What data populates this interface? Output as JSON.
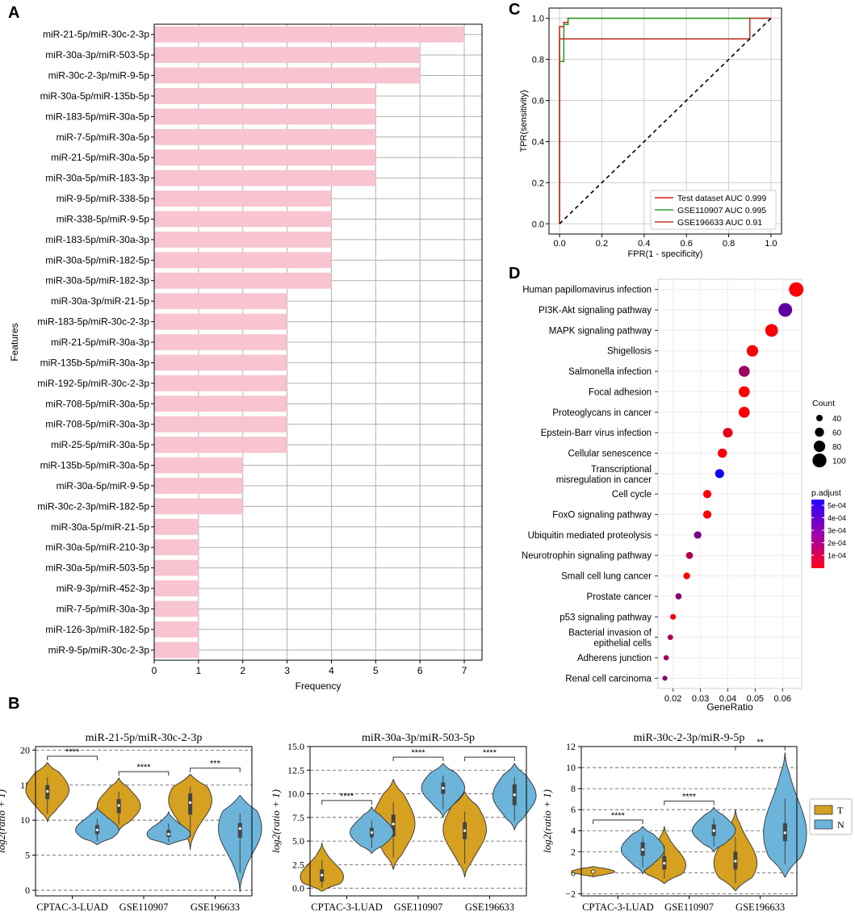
{
  "panel_letters": {
    "a": "A",
    "b": "B",
    "c": "C",
    "d": "D"
  },
  "colors": {
    "bar": "#f7c4cf",
    "violin_t": "#d6a021",
    "violin_n": "#6cb4da",
    "roc1": "#e41a1c",
    "roc2": "#2ca02c",
    "roc3": "#c0392b"
  },
  "chart_data": [
    {
      "id": "A",
      "type": "bar",
      "orientation": "horizontal",
      "title": "",
      "xlabel": "Frequency",
      "ylabel": "Features",
      "xlim": [
        0,
        7.4
      ],
      "xticks": [
        0,
        1,
        2,
        3,
        4,
        5,
        6,
        7
      ],
      "grid": true,
      "categories": [
        "miR-21-5p/miR-30c-2-3p",
        "miR-30a-3p/miR-503-5p",
        "miR-30c-2-3p/miR-9-5p",
        "miR-30a-5p/miR-135b-5p",
        "miR-183-5p/miR-30a-5p",
        "miR-7-5p/miR-30a-5p",
        "miR-21-5p/miR-30a-5p",
        "miR-30a-5p/miR-183-3p",
        "miR-9-5p/miR-338-5p",
        "miR-338-5p/miR-9-5p",
        "miR-183-5p/miR-30a-3p",
        "miR-30a-5p/miR-182-5p",
        "miR-30a-5p/miR-182-3p",
        "miR-30a-3p/miR-21-5p",
        "miR-183-5p/miR-30c-2-3p",
        "miR-21-5p/miR-30a-3p",
        "miR-135b-5p/miR-30a-3p",
        "miR-192-5p/miR-30c-2-3p",
        "miR-708-5p/miR-30a-5p",
        "miR-708-5p/miR-30a-3p",
        "miR-25-5p/miR-30a-5p",
        "miR-135b-5p/miR-30a-5p",
        "miR-30a-5p/miR-9-5p",
        "miR-30c-2-3p/miR-182-5p",
        "miR-30a-5p/miR-21-5p",
        "miR-30a-5p/miR-210-3p",
        "miR-30a-5p/miR-503-5p",
        "miR-9-3p/miR-452-3p",
        "miR-7-5p/miR-30a-3p",
        "miR-126-3p/miR-182-5p",
        "miR-9-5p/miR-30c-2-3p"
      ],
      "values": [
        7,
        6,
        6,
        5,
        5,
        5,
        5,
        5,
        4,
        4,
        4,
        4,
        4,
        3,
        3,
        3,
        3,
        3,
        3,
        3,
        3,
        2,
        2,
        2,
        1,
        1,
        1,
        1,
        1,
        1,
        1
      ]
    },
    {
      "id": "C",
      "type": "line",
      "xlabel": "FPR(1 - specificity)",
      "ylabel": "TPR(sensitivity)",
      "xlim": [
        -0.05,
        1.05
      ],
      "ylim": [
        -0.05,
        1.05
      ],
      "xticks": [
        "0.0",
        "0.2",
        "0.4",
        "0.6",
        "0.8",
        "1.0"
      ],
      "yticks": [
        "0.0",
        "0.2",
        "0.4",
        "0.6",
        "0.8",
        "1.0"
      ],
      "legend_position": "bottom-right",
      "series": [
        {
          "name": "Test dataset AUC 0.999",
          "color": "#e41a1c",
          "x": [
            0,
            0,
            0.02,
            0.02,
            0.04,
            0.04,
            1
          ],
          "y": [
            0,
            0.96,
            0.96,
            0.98,
            0.98,
            1,
            1
          ]
        },
        {
          "name": "GSE110907 AUC 0.995",
          "color": "#2ca02c",
          "x": [
            0,
            0,
            0.02,
            0.02,
            0.04,
            0.04,
            1
          ],
          "y": [
            0,
            0.79,
            0.79,
            0.97,
            0.97,
            1,
            1
          ]
        },
        {
          "name": "GSE196633 AUC 0.91",
          "color": "#c0392b",
          "x": [
            0,
            0,
            0.9,
            0.9,
            1
          ],
          "y": [
            0,
            0.9,
            0.9,
            1,
            1
          ]
        },
        {
          "name": "",
          "color": "#000000",
          "dashed": true,
          "x": [
            0,
            1
          ],
          "y": [
            0,
            1
          ]
        }
      ]
    },
    {
      "id": "D",
      "type": "scatter",
      "xlabel": "GeneRatio",
      "xlim": [
        0.0145,
        0.067
      ],
      "xticks": [
        0.02,
        0.03,
        0.04,
        0.05,
        0.06
      ],
      "xtick_labels": [
        "0.02",
        "0.03",
        "0.04",
        "0.05",
        "0.06"
      ],
      "size_legend_title": "Count",
      "size_legend": [
        40,
        60,
        80,
        100
      ],
      "color_legend_title": "p.adjust",
      "color_legend_labels": [
        "5e-04",
        "4e-04",
        "3e-04",
        "2e-04",
        "1e-04"
      ],
      "color_range": [
        1e-05,
        0.00055
      ],
      "terms": [
        {
          "name": "Human papillomavirus infection",
          "ratio": 0.065,
          "count": 104,
          "padj": 2e-05
        },
        {
          "name": "PI3K-Akt signaling pathway",
          "ratio": 0.061,
          "count": 98,
          "padj": 0.00035
        },
        {
          "name": "MAPK signaling pathway",
          "ratio": 0.056,
          "count": 90,
          "padj": 3e-05
        },
        {
          "name": "Shigellosis",
          "ratio": 0.049,
          "count": 80,
          "padj": 2e-05
        },
        {
          "name": "Salmonella infection",
          "ratio": 0.046,
          "count": 76,
          "padj": 0.00022
        },
        {
          "name": "Focal adhesion",
          "ratio": 0.046,
          "count": 76,
          "padj": 2e-05
        },
        {
          "name": "Proteoglycans in cancer",
          "ratio": 0.046,
          "count": 76,
          "padj": 2e-05
        },
        {
          "name": "Epstein-Barr virus infection",
          "ratio": 0.04,
          "count": 66,
          "padj": 6e-05
        },
        {
          "name": "Cellular senescence",
          "ratio": 0.038,
          "count": 62,
          "padj": 2e-05
        },
        {
          "name": "Transcriptional misregulation in cancer",
          "ratio": 0.037,
          "count": 60,
          "padj": 0.00052
        },
        {
          "name": "Cell cycle",
          "ratio": 0.0325,
          "count": 54,
          "padj": 2e-05
        },
        {
          "name": "FoxO signaling pathway",
          "ratio": 0.0325,
          "count": 54,
          "padj": 2e-05
        },
        {
          "name": "Ubiquitin mediated proteolysis",
          "ratio": 0.029,
          "count": 48,
          "padj": 0.0003
        },
        {
          "name": "Neurotrophin signaling pathway",
          "ratio": 0.026,
          "count": 44,
          "padj": 0.00018
        },
        {
          "name": "Small cell lung cancer",
          "ratio": 0.025,
          "count": 42,
          "padj": 3e-05
        },
        {
          "name": "Prostate cancer",
          "ratio": 0.022,
          "count": 38,
          "padj": 0.00026
        },
        {
          "name": "p53 signaling pathway",
          "ratio": 0.02,
          "count": 34,
          "padj": 3e-05
        },
        {
          "name": "Bacterial invasion of epithelial cells",
          "ratio": 0.019,
          "count": 32,
          "padj": 0.00018
        },
        {
          "name": "Adherens junction",
          "ratio": 0.0175,
          "count": 30,
          "padj": 0.00022
        },
        {
          "name": "Renal cell carcinoma",
          "ratio": 0.017,
          "count": 28,
          "padj": 0.00026
        }
      ]
    },
    {
      "id": "B",
      "type": "violin",
      "ylabel": "log2(ratio + 1)",
      "legend": [
        "T",
        "N"
      ],
      "panels": [
        {
          "title": "miR-21-5p/miR-30c-2-3p",
          "ylim": [
            -0.8,
            20.5
          ],
          "yticks": [
            0,
            5,
            10,
            15,
            20
          ],
          "ytick_labels": [
            "0",
            "5",
            "10",
            "15",
            "20"
          ],
          "groups": [
            "CPTAC-3-LUAD",
            "GSE110907",
            "GSE196633"
          ],
          "sig": [
            "****",
            "****",
            "***"
          ],
          "violins": {
            "T": [
              {
                "min": 9.8,
                "max": 18.2,
                "q1": 13.0,
                "median": 14.1,
                "q3": 15.0,
                "mode": 14.3,
                "spread": 5.0
              },
              {
                "min": 8.5,
                "max": 16.0,
                "q1": 11.0,
                "median": 12.1,
                "q3": 13.0,
                "mode": 12.0,
                "spread": 7.0
              },
              {
                "min": 5.8,
                "max": 16.5,
                "q1": 10.8,
                "median": 12.5,
                "q3": 13.8,
                "mode": 12.8,
                "spread": 9.0
              }
            ],
            "N": [
              {
                "min": 6.5,
                "max": 11.8,
                "q1": 8.0,
                "median": 8.6,
                "q3": 9.3,
                "mode": 8.6,
                "spread": 3.5
              },
              {
                "min": 6.5,
                "max": 11.2,
                "q1": 7.6,
                "median": 8.0,
                "q3": 8.6,
                "mode": 8.0,
                "spread": 3.5
              },
              {
                "min": -0.2,
                "max": 13.5,
                "q1": 7.5,
                "median": 8.8,
                "q3": 9.6,
                "mode": 8.8,
                "spread": 7.0
              }
            ]
          }
        },
        {
          "title": "miR-30a-3p/miR-503-5p",
          "ylim": [
            -0.8,
            15.0
          ],
          "yticks": [
            0,
            2.5,
            5,
            7.5,
            10,
            12.5,
            15
          ],
          "ytick_labels": [
            "0.0",
            "2.5",
            "5.0",
            "7.5",
            "10.0",
            "12.5",
            "15.0"
          ],
          "groups": [
            "CPTAC-3-LUAD",
            "GSE110907",
            "GSE196633"
          ],
          "sig": [
            "****",
            "****",
            "****"
          ],
          "violins": {
            "T": [
              {
                "min": -0.3,
                "max": 4.8,
                "q1": 0.7,
                "median": 1.4,
                "q3": 2.0,
                "mode": 1.2,
                "spread": 3.5
              },
              {
                "min": 2.0,
                "max": 11.5,
                "q1": 5.5,
                "median": 6.8,
                "q3": 7.8,
                "mode": 6.8,
                "spread": 9.0
              },
              {
                "min": 1.2,
                "max": 10.2,
                "q1": 5.2,
                "median": 6.1,
                "q3": 7.0,
                "mode": 6.2,
                "spread": 9.0
              }
            ],
            "N": [
              {
                "min": 3.7,
                "max": 8.6,
                "q1": 5.4,
                "median": 5.9,
                "q3": 6.4,
                "mode": 5.9,
                "spread": 3.5
              },
              {
                "min": 7.5,
                "max": 13.2,
                "q1": 10.0,
                "median": 10.6,
                "q3": 11.2,
                "mode": 10.6,
                "spread": 3.5
              },
              {
                "min": 6.2,
                "max": 13.2,
                "q1": 8.8,
                "median": 9.9,
                "q3": 11.0,
                "mode": 9.8,
                "spread": 4.5
              }
            ]
          }
        },
        {
          "title": "miR-30c-2-3p/miR-9-5p",
          "ylim": [
            -2.2,
            12.0
          ],
          "yticks": [
            -2,
            0,
            2,
            4,
            6,
            8,
            10,
            12
          ],
          "ytick_labels": [
            "−2",
            "0",
            "2",
            "4",
            "6",
            "8",
            "10",
            "12"
          ],
          "groups": [
            "CPTAC-3-LUAD",
            "GSE110907",
            "GSE196633"
          ],
          "sig": [
            "****",
            "****",
            "**"
          ],
          "violins": {
            "T": [
              {
                "min": -0.4,
                "max": 0.6,
                "q1": -0.05,
                "median": 0.1,
                "q3": 0.25,
                "mode": 0.1,
                "spread": 1.2
              },
              {
                "min": -1.0,
                "max": 4.4,
                "q1": 0.3,
                "median": 0.9,
                "q3": 1.6,
                "mode": 0.7,
                "spread": 4.5
              },
              {
                "min": -1.7,
                "max": 6.0,
                "q1": 0.3,
                "median": 1.1,
                "q3": 2.0,
                "mode": 0.9,
                "spread": 6.0
              }
            ],
            "N": [
              {
                "min": -0.1,
                "max": 4.4,
                "q1": 1.6,
                "median": 2.2,
                "q3": 2.9,
                "mode": 2.2,
                "spread": 3.0
              },
              {
                "min": 2.0,
                "max": 6.2,
                "q1": 3.5,
                "median": 4.0,
                "q3": 4.6,
                "mode": 4.0,
                "spread": 3.5
              },
              {
                "min": -0.4,
                "max": 11.4,
                "q1": 3.0,
                "median": 3.8,
                "q3": 4.7,
                "mode": 3.7,
                "spread": 8.0
              }
            ]
          }
        }
      ]
    }
  ]
}
